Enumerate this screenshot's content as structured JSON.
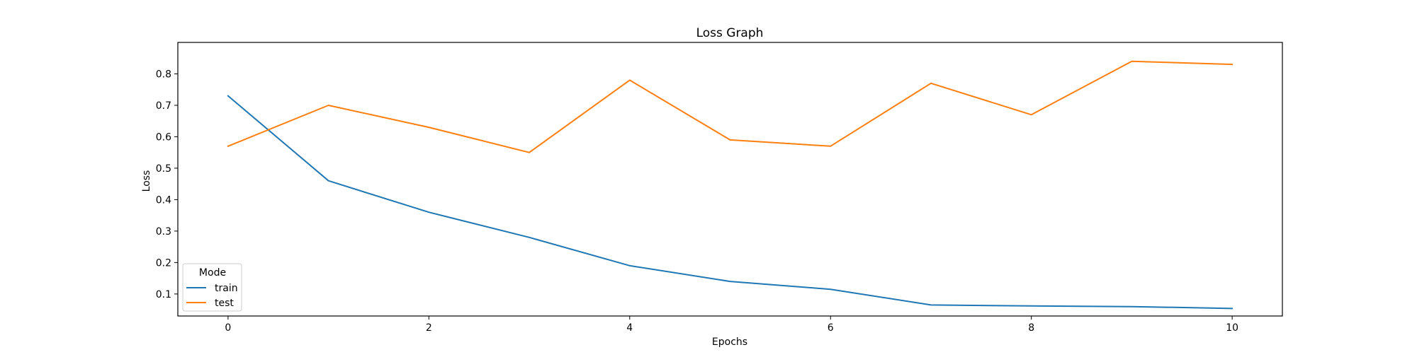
{
  "chart_data": {
    "type": "line",
    "title": "Loss Graph",
    "xlabel": "Epochs",
    "ylabel": "Loss",
    "x": [
      0,
      1,
      2,
      3,
      4,
      5,
      6,
      7,
      8,
      9,
      10
    ],
    "xlim": [
      -0.5,
      10.5
    ],
    "ylim": [
      0.03,
      0.9
    ],
    "xticks": [
      0,
      2,
      4,
      6,
      8,
      10
    ],
    "yticks": [
      0.1,
      0.2,
      0.3,
      0.4,
      0.5,
      0.6,
      0.7,
      0.8
    ],
    "grid": false,
    "legend": {
      "title": "Mode",
      "position": "lower-left"
    },
    "series": [
      {
        "name": "train",
        "color": "#1f77b4",
        "values": [
          0.73,
          0.46,
          0.36,
          0.28,
          0.19,
          0.14,
          0.115,
          0.065,
          0.062,
          0.06,
          0.054
        ]
      },
      {
        "name": "test",
        "color": "#ff7f0e",
        "values": [
          0.57,
          0.7,
          0.63,
          0.55,
          0.78,
          0.59,
          0.57,
          0.77,
          0.67,
          0.84,
          0.83
        ]
      }
    ]
  }
}
